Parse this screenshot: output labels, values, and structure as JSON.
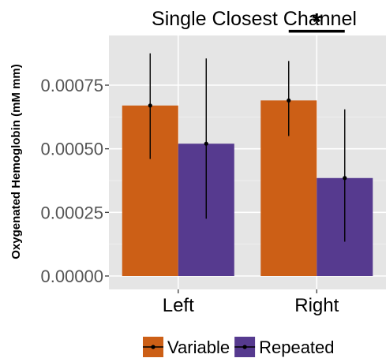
{
  "chart_data": {
    "type": "bar",
    "title": "Single Closest Channel",
    "xlabel": "",
    "ylabel": "Oxygenated Hemoglobin (mM mm)",
    "categories": [
      "Left",
      "Right"
    ],
    "ylim": [
      0,
      0.00092
    ],
    "yticks": [
      0,
      0.00025,
      0.0005,
      0.00075
    ],
    "ytick_labels": [
      "0.00000",
      "0.00025",
      "0.00050",
      "0.00075"
    ],
    "series": [
      {
        "name": "Variable",
        "color": "#CC5F16",
        "values": [
          0.00067,
          0.00069
        ],
        "err_low": [
          0.00046,
          0.00055
        ],
        "err_high": [
          0.000875,
          0.000845
        ]
      },
      {
        "name": "Repeated",
        "color": "#563A8F",
        "values": [
          0.00052,
          0.000385
        ],
        "err_low": [
          0.000225,
          0.000135
        ],
        "err_high": [
          0.000855,
          0.000655
        ]
      }
    ],
    "annotations": [
      {
        "text": "*",
        "category": "Right",
        "y": 0.0009
      }
    ],
    "grid": true,
    "legend_position": "bottom"
  }
}
